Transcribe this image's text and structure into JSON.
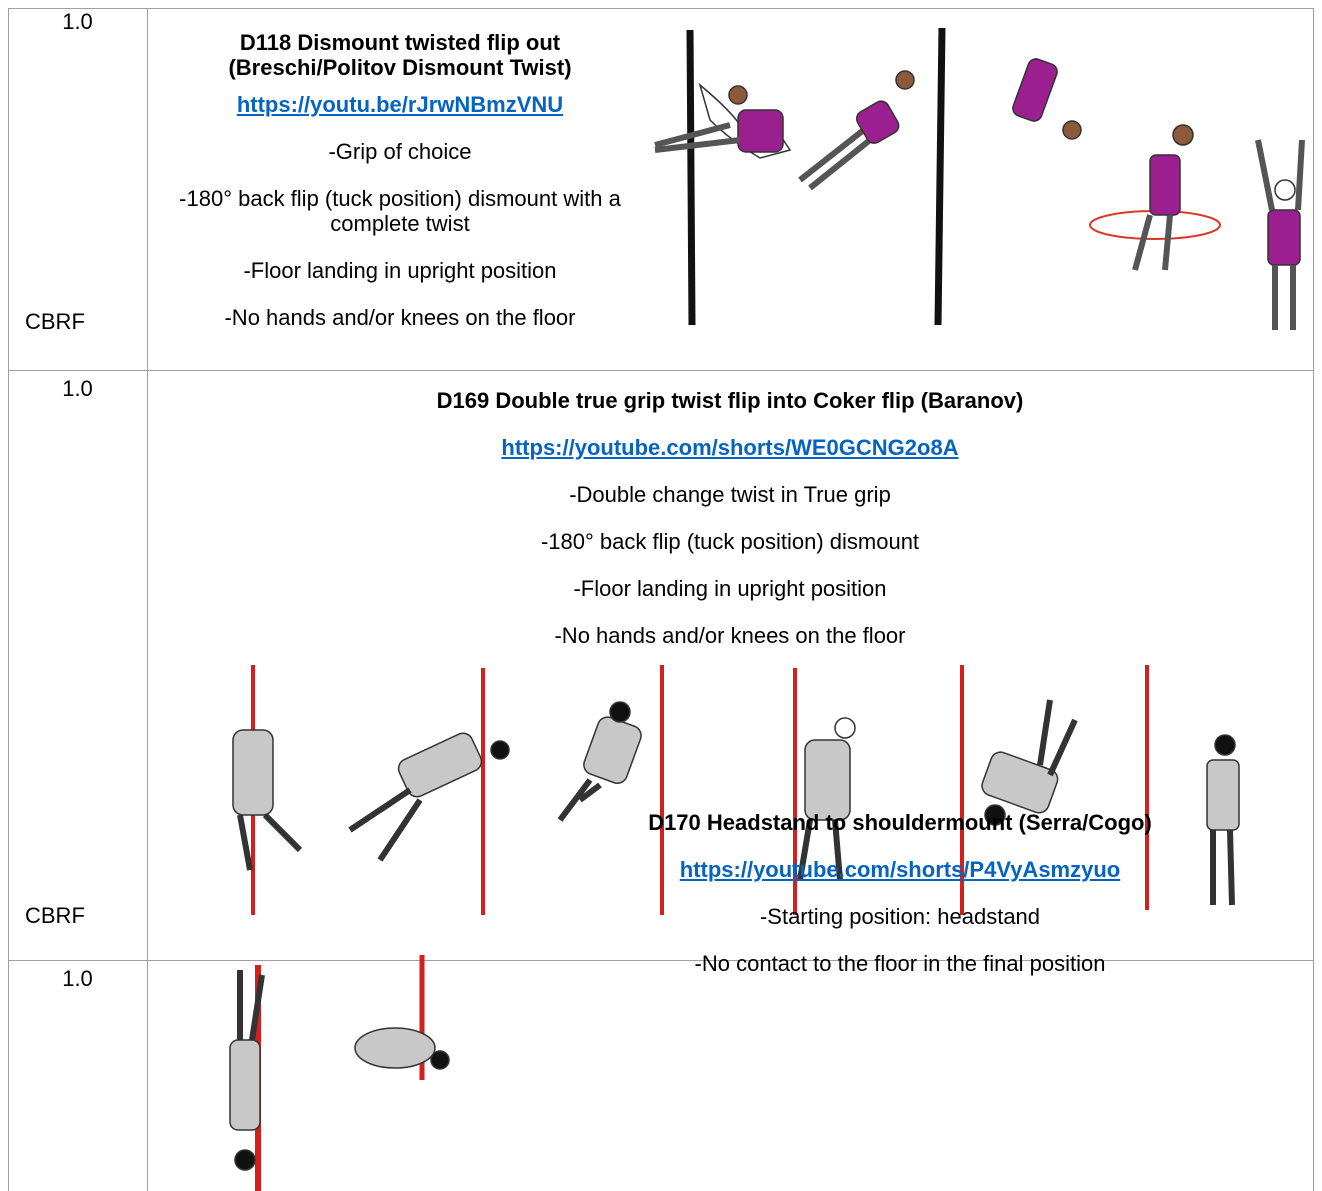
{
  "rows": [
    {
      "value": "1.0",
      "category": "CBRF",
      "title": "D118 Dismount twisted flip out (Breschi/Politov Dismount Twist)",
      "link": "https://youtu.be/rJrwNBmzVNU",
      "bullets": [
        "-Grip of choice",
        "-180° back flip (tuck position) dismount with a complete twist",
        "-Floor landing in upright position",
        "-No hands and/or knees on the floor"
      ]
    },
    {
      "value": "1.0",
      "category": "CBRF",
      "title": "D169 Double true grip twist flip into Coker flip (Baranov)",
      "link": "https://youtube.com/shorts/WE0GCNG2o8A",
      "bullets": [
        "-Double change twist in True grip",
        "-180° back flip (tuck position) dismount",
        "-Floor landing in upright position",
        "-No hands and/or knees on the floor"
      ]
    },
    {
      "value": "1.0",
      "title": "D170 Headstand to shouldermount (Serra/Cogo)",
      "link": "https://youtube.com/shorts/P4VyAsmzyuo",
      "bullets": [
        "-Starting position: headstand",
        "-No contact to the floor in the final position"
      ]
    }
  ]
}
